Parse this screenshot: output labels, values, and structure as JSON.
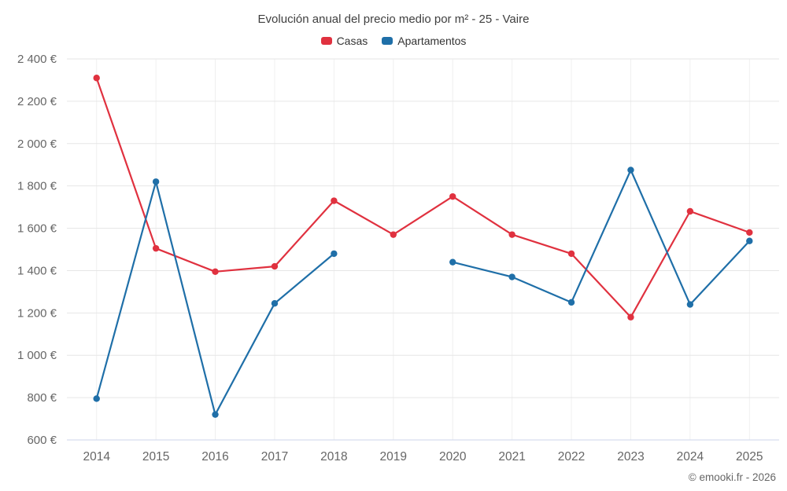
{
  "title": "Evolución anual del precio medio por m² - 25 - Vaire",
  "copyright": "© emooki.fr - 2026",
  "legend": [
    {
      "label": "Casas",
      "color": "#e0313f"
    },
    {
      "label": "Apartamentos",
      "color": "#1f6fa8"
    }
  ],
  "chart_data": {
    "type": "line",
    "title": "Evolución anual del precio medio por m² - 25 - Vaire",
    "categories": [
      "2014",
      "2015",
      "2016",
      "2017",
      "2018",
      "2019",
      "2020",
      "2021",
      "2022",
      "2023",
      "2024",
      "2025"
    ],
    "series": [
      {
        "name": "Casas",
        "color": "#e0313f",
        "values": [
          2310,
          1505,
          1395,
          1420,
          1730,
          1570,
          1750,
          1570,
          1480,
          1180,
          1680,
          1580
        ]
      },
      {
        "name": "Apartamentos",
        "color": "#1f6fa8",
        "values": [
          795,
          1820,
          720,
          1245,
          1480,
          null,
          1440,
          1370,
          1250,
          1875,
          1240,
          1540
        ]
      }
    ],
    "ylabel_suffix": " €",
    "ylim": [
      600,
      2400
    ],
    "ytick_step": 200,
    "grid": true,
    "legend_position": "top",
    "grid_color": "#e6e6e6",
    "axis_line_color": "#ccd6eb",
    "label_color": "#666666"
  }
}
